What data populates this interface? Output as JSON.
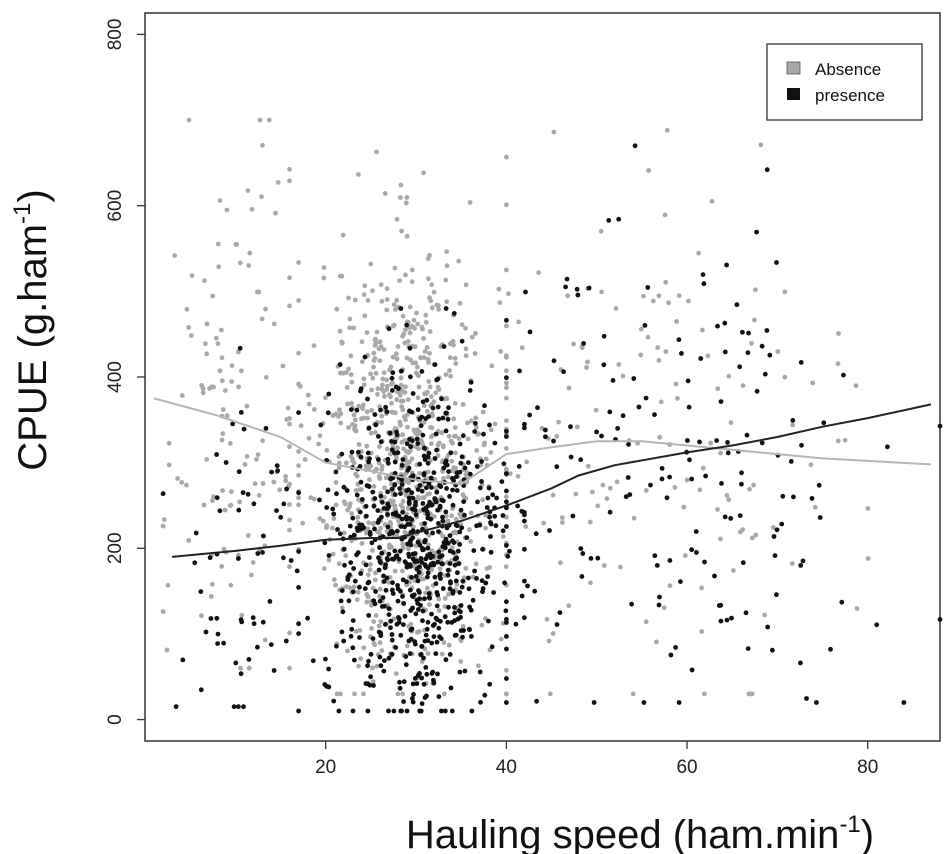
{
  "chart_data": {
    "type": "scatter",
    "xlabel": "Hauling speed  (ham.min",
    "xlabel_sup": "-1",
    "xlabel_end": ")",
    "ylabel": "CPUE  (g.ham",
    "ylabel_sup": "-1",
    "ylabel_end": ")",
    "xlim": [
      0,
      88
    ],
    "ylim": [
      -25,
      825
    ],
    "xticks": [
      "20",
      "40",
      "60",
      "80"
    ],
    "xtick_values": [
      20,
      40,
      60,
      80
    ],
    "yticks": [
      "0",
      "200",
      "400",
      "600",
      "800"
    ],
    "ytick_values": [
      0,
      200,
      400,
      600,
      800
    ],
    "grid": false,
    "legend_position": "top-right",
    "series": [
      {
        "name": "Absence",
        "color": "#a8a8a8",
        "marker": "point",
        "smooth_line": {
          "color": "#b5b5b5",
          "x": [
            1,
            8,
            15,
            20,
            25,
            30,
            35,
            40,
            45,
            50,
            55,
            60,
            65,
            70,
            75,
            80,
            87
          ],
          "y": [
            375,
            355,
            330,
            300,
            290,
            280,
            275,
            310,
            318,
            325,
            325,
            320,
            315,
            310,
            305,
            302,
            298
          ]
        }
      },
      {
        "name": "presence",
        "color": "#111111",
        "marker": "point",
        "smooth_line": {
          "color": "#222222",
          "x": [
            3,
            10,
            15,
            20,
            25,
            28,
            30,
            35,
            40,
            45,
            48,
            52,
            60,
            65,
            70,
            75,
            80,
            87
          ],
          "y": [
            190,
            197,
            203,
            210,
            212,
            212,
            218,
            232,
            250,
            270,
            285,
            297,
            312,
            320,
            330,
            342,
            352,
            368
          ]
        }
      }
    ],
    "point_clouds": [
      {
        "series": 0,
        "count": 900,
        "x_range": [
          17,
          40
        ],
        "x_center": 29,
        "x_sd": 5,
        "y_range": [
          30,
          680
        ],
        "y_center": 300,
        "y_sd": 120
      },
      {
        "series": 0,
        "count": 130,
        "x_range": [
          2,
          16
        ],
        "x_center": 10,
        "x_sd": 4,
        "y_range": [
          60,
          700
        ],
        "y_center": 340,
        "y_sd": 160
      },
      {
        "series": 0,
        "count": 160,
        "x_range": [
          40,
          88
        ],
        "x_center": 55,
        "x_sd": 12,
        "y_range": [
          30,
          760
        ],
        "y_center": 330,
        "y_sd": 160
      },
      {
        "series": 1,
        "count": 700,
        "x_range": [
          17,
          42
        ],
        "x_center": 30,
        "x_sd": 5,
        "y_range": [
          10,
          480
        ],
        "y_center": 200,
        "y_sd": 100
      },
      {
        "series": 1,
        "count": 60,
        "x_range": [
          2,
          17
        ],
        "x_center": 11,
        "x_sd": 4,
        "y_range": [
          15,
          630
        ],
        "y_center": 180,
        "y_sd": 120
      },
      {
        "series": 1,
        "count": 180,
        "x_range": [
          40,
          88
        ],
        "x_center": 56,
        "x_sd": 13,
        "y_range": [
          20,
          670
        ],
        "y_center": 280,
        "y_sd": 140
      }
    ]
  }
}
